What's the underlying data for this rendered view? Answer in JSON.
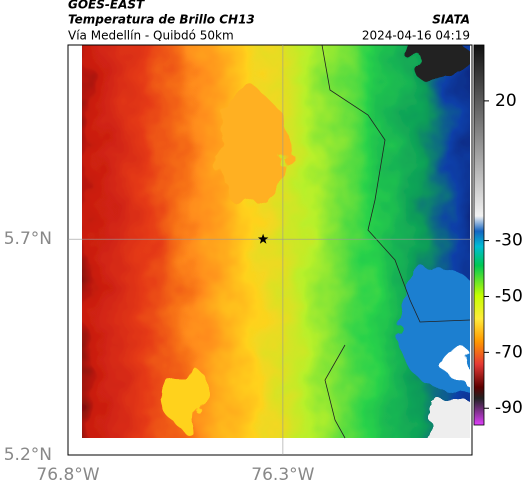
{
  "chart_data": {
    "type": "map",
    "title": "GOES-EAST",
    "subtitle": "Temperatura de Brillo CH13",
    "source": "SIATA",
    "region": "Vía Medellín - Quibdó 50km",
    "date": "2024-04-16 04:19",
    "xlim": [
      -76.8,
      -75.86
    ],
    "ylim": [
      5.2,
      6.15
    ],
    "xticks": [
      {
        "value": -76.8,
        "label": "76.8°W"
      },
      {
        "value": -76.3,
        "label": "76.3°W"
      }
    ],
    "yticks": [
      {
        "value": 5.2,
        "label": "5.2°N"
      },
      {
        "value": 5.7,
        "label": "5.7°N"
      }
    ],
    "grid": true,
    "marker": {
      "lon": -76.346,
      "lat": 5.7
    },
    "clim": [
      -96,
      40
    ],
    "cticks": [
      20,
      -30,
      -50,
      -70,
      -90
    ]
  }
}
